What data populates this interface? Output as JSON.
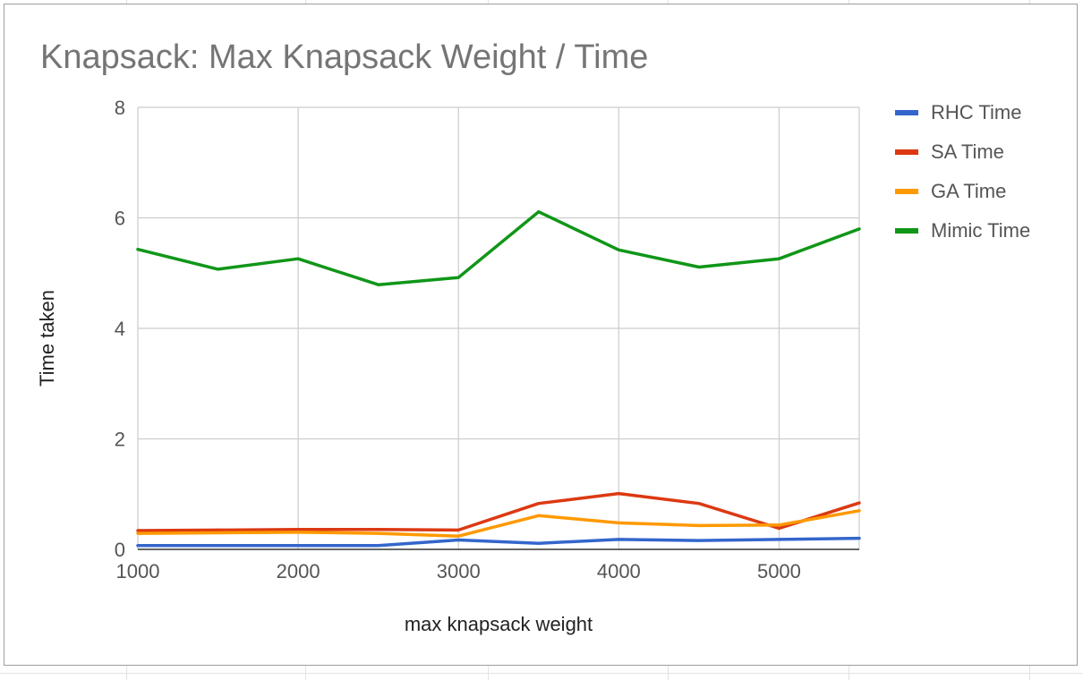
{
  "chart_data": {
    "type": "line",
    "title": "Knapsack: Max Knapsack Weight / Time",
    "xlabel": "max knapsack weight",
    "ylabel": "Time taken",
    "xlim": [
      1000,
      5500
    ],
    "ylim": [
      0,
      8
    ],
    "x_ticks": [
      "1000",
      "2000",
      "3000",
      "4000",
      "5000"
    ],
    "y_ticks": [
      "0",
      "2",
      "4",
      "6",
      "8"
    ],
    "grid": true,
    "legend_position": "right",
    "x": [
      1000,
      1500,
      2000,
      2500,
      3000,
      3500,
      4000,
      4500,
      5000,
      5500
    ],
    "series": [
      {
        "name": "RHC Time",
        "color": "#3366cc",
        "values": [
          0.07,
          0.07,
          0.07,
          0.07,
          0.17,
          0.11,
          0.18,
          0.16,
          0.18,
          0.2
        ]
      },
      {
        "name": "SA Time",
        "color": "#dc3912",
        "values": [
          0.34,
          0.35,
          0.36,
          0.36,
          0.35,
          0.83,
          1.01,
          0.83,
          0.38,
          0.84
        ]
      },
      {
        "name": "GA Time",
        "color": "#ff9900",
        "values": [
          0.29,
          0.3,
          0.31,
          0.29,
          0.24,
          0.61,
          0.48,
          0.43,
          0.44,
          0.7
        ]
      },
      {
        "name": "Mimic Time",
        "color": "#109618",
        "values": [
          5.43,
          5.07,
          5.26,
          4.79,
          4.92,
          6.11,
          5.42,
          5.11,
          5.26,
          5.8
        ]
      }
    ]
  }
}
